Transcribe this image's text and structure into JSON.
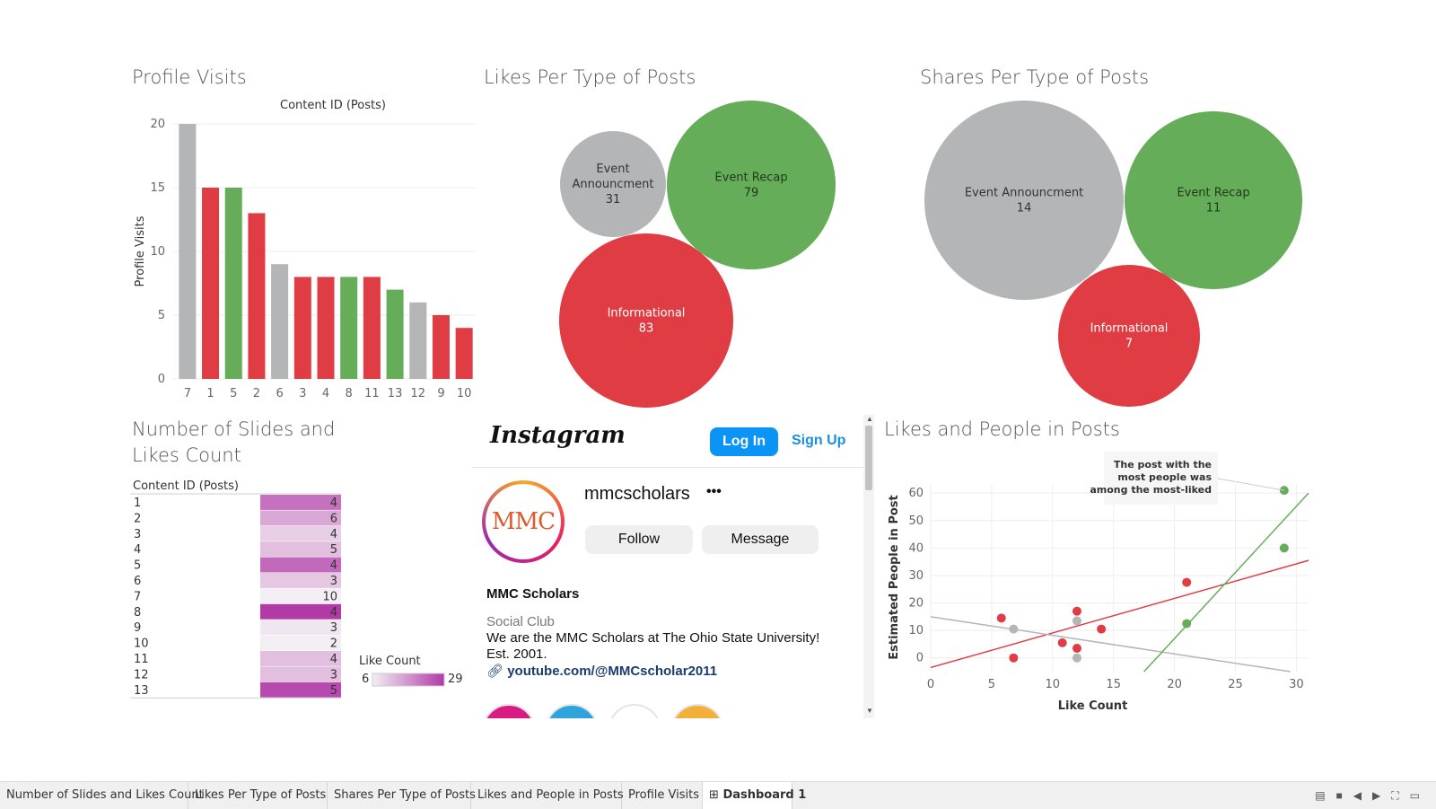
{
  "titles": {
    "profile_visits": "Profile Visits",
    "likes_per_type": "Likes Per Type of Posts",
    "shares_per_type": "Shares Per Type of Posts",
    "slides_likes_line1": "Number of Slides and",
    "slides_likes_line2": "Likes Count",
    "likes_people": "Likes and People in Posts"
  },
  "colors": {
    "gray": "#b3b5b6",
    "red": "#e03c44",
    "green": "#66ad5a",
    "heat_low": "#f3eef3",
    "heat_high": "#b13aa7"
  },
  "chart_data": [
    {
      "type": "bar",
      "title": "Content ID (Posts)",
      "ylabel": "Profile Visits",
      "xlabel": "",
      "ylim": [
        0,
        20
      ],
      "yticks": [
        "0",
        "5",
        "10",
        "15",
        "20"
      ],
      "categories": [
        "7",
        "1",
        "5",
        "2",
        "6",
        "3",
        "4",
        "8",
        "11",
        "13",
        "12",
        "9",
        "10"
      ],
      "values": [
        20,
        15,
        15,
        13,
        9,
        8,
        8,
        8,
        8,
        7,
        6,
        5,
        4
      ],
      "bar_colors": [
        "gray",
        "red",
        "green",
        "red",
        "gray",
        "red",
        "red",
        "green",
        "red",
        "green",
        "gray",
        "red",
        "red"
      ]
    },
    {
      "type": "bubble",
      "title": "Likes Per Type of Posts",
      "bubbles": [
        {
          "label_lines": [
            "Event",
            "Announcment"
          ],
          "value": "31",
          "color": "gray",
          "text_color": "#333333"
        },
        {
          "label_lines": [
            "Event Recap"
          ],
          "value": "79",
          "color": "green",
          "text_color": "#1e3a1a"
        },
        {
          "label_lines": [
            "Informational"
          ],
          "value": "83",
          "color": "red",
          "text_color": "#ffffff"
        }
      ]
    },
    {
      "type": "bubble",
      "title": "Shares Per Type of Posts",
      "bubbles": [
        {
          "label_lines": [
            "Event Announcment"
          ],
          "value": "14",
          "color": "gray",
          "text_color": "#333333"
        },
        {
          "label_lines": [
            "Event Recap"
          ],
          "value": "11",
          "color": "green",
          "text_color": "#1e3a1a"
        },
        {
          "label_lines": [
            "Informational"
          ],
          "value": "7",
          "color": "red",
          "text_color": "#ffffff"
        }
      ]
    },
    {
      "type": "heatmap",
      "header": "Content ID (Posts)",
      "rows": [
        "1",
        "2",
        "3",
        "4",
        "5",
        "6",
        "7",
        "8",
        "9",
        "10",
        "11",
        "12",
        "13"
      ],
      "slides": [
        "4",
        "6",
        "4",
        "5",
        "4",
        "3",
        "10",
        "4",
        "3",
        "2",
        "4",
        "3",
        "5"
      ],
      "like_count": [
        22,
        15,
        10,
        12,
        23,
        11,
        6,
        29,
        7,
        6,
        12,
        12,
        27
      ],
      "legend_title": "Like Count",
      "legend_min": "6",
      "legend_max": "29"
    },
    {
      "type": "scatter",
      "title": "Likes and People in Posts",
      "xlabel": "Like Count",
      "ylabel": "Estimated People in Post",
      "xlim": [
        0,
        31
      ],
      "ylim": [
        -5,
        63
      ],
      "xticks": [
        "0",
        "5",
        "10",
        "15",
        "20",
        "25",
        "30"
      ],
      "yticks": [
        "0",
        "10",
        "20",
        "30",
        "40",
        "50",
        "60"
      ],
      "annotation": [
        "The post with the",
        "most people was",
        "among the most-liked"
      ],
      "series": [
        {
          "color": "red",
          "points": [
            [
              5.8,
              14.5
            ],
            [
              6.8,
              0
            ],
            [
              10.8,
              5.5
            ],
            [
              12,
              17
            ],
            [
              12,
              3.5
            ],
            [
              14,
              10.5
            ],
            [
              21,
              27.5
            ]
          ],
          "trend": [
            [
              0,
              -3.5
            ],
            [
              31,
              35.5
            ]
          ]
        },
        {
          "color": "gray",
          "points": [
            [
              6.8,
              10.5
            ],
            [
              12,
              0
            ],
            [
              12,
              13.5
            ]
          ],
          "trend": [
            [
              0,
              15
            ],
            [
              29.5,
              -5
            ]
          ]
        },
        {
          "color": "green",
          "points": [
            [
              21,
              12.5
            ],
            [
              29,
              40
            ],
            [
              29,
              61
            ]
          ],
          "trend": [
            [
              17.5,
              -5
            ],
            [
              31,
              60
            ]
          ]
        }
      ]
    }
  ],
  "instagram": {
    "logo": "Instagram",
    "login_label": "Log In",
    "signup_label": "Sign Up",
    "username": "mmcscholars",
    "more_label": "•••",
    "avatar_text": "MMC",
    "follow_label": "Follow",
    "message_label": "Message",
    "display_name": "MMC Scholars",
    "category": "Social Club",
    "bio_line1": "We are the MMC Scholars at The Ohio State University!",
    "bio_line2": "Est. 2001.",
    "link_text": "youtube.com/@MMCscholar2011",
    "highlight_colors": [
      "#d91c84",
      "#2ea3dc",
      "#ffffff",
      "#f2b03a"
    ]
  },
  "tabs": [
    "Number of Slides and Likes Count",
    "Likes Per Type of Posts",
    "Shares Per Type of Posts",
    "Likes and People in Posts",
    "Profile Visits",
    "Dashboard 1"
  ]
}
